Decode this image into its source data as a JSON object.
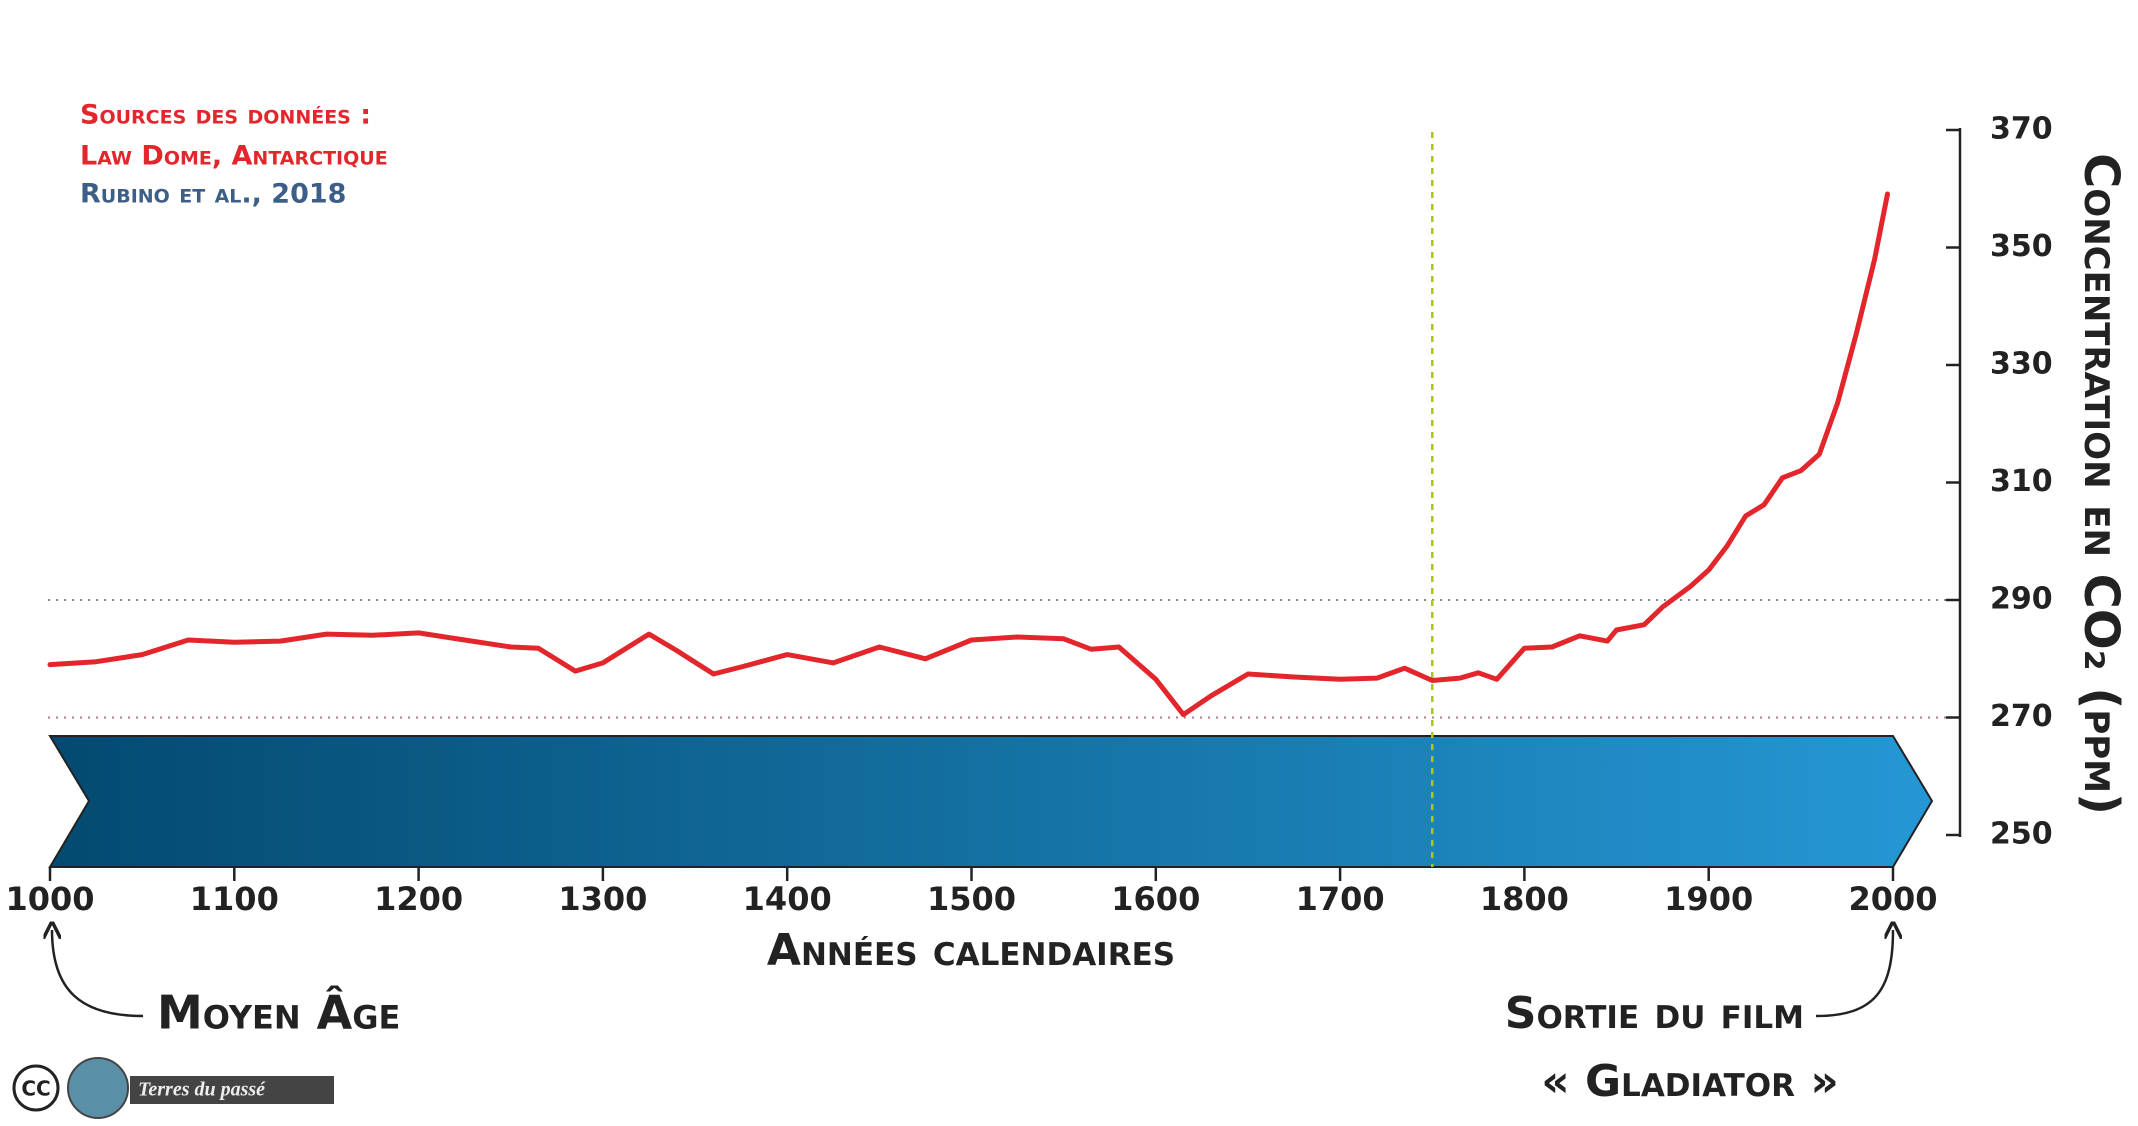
{
  "chart_data": {
    "type": "line",
    "sources": [
      "Sources des données :",
      "Law Dome, Antarctique",
      "Rubino et al., 2018"
    ],
    "xlabel": "Années calendaires",
    "ylabel": "Concentration en CO₂ (ppm)",
    "annotations": [
      "Moyen Âge",
      "Sortie du film",
      "« Gladiator »"
    ],
    "credit": "Terres du passé",
    "license": "CC",
    "xlim": [
      1000,
      2000
    ],
    "xticks": [
      1000,
      1100,
      1200,
      1300,
      1400,
      1500,
      1600,
      1700,
      1800,
      1900,
      2000
    ],
    "ylim": [
      250,
      370
    ],
    "yticks": [
      250,
      270,
      290,
      310,
      330,
      350,
      370
    ],
    "reference_lines": [
      270,
      290
    ],
    "vline": 1750,
    "series": [
      {
        "color": "#e3262b",
        "x": [
          1000,
          1025,
          1050,
          1075,
          1100,
          1125,
          1150,
          1175,
          1200,
          1225,
          1250,
          1265,
          1285,
          1300,
          1325,
          1340,
          1360,
          1375,
          1400,
          1425,
          1450,
          1475,
          1500,
          1525,
          1550,
          1565,
          1580,
          1600,
          1615,
          1630,
          1650,
          1675,
          1700,
          1720,
          1735,
          1750,
          1765,
          1775,
          1785,
          1800,
          1815,
          1830,
          1845,
          1850,
          1865,
          1875,
          1890,
          1900,
          1910,
          1920,
          1930,
          1940,
          1950,
          1960,
          1970,
          1980,
          1990,
          1997
        ],
        "values": [
          279,
          279.5,
          280.7,
          283.2,
          282.8,
          283,
          284.2,
          284,
          284.4,
          283.2,
          282,
          281.8,
          277.9,
          279.3,
          284.2,
          281.4,
          277.4,
          278.6,
          280.7,
          279.3,
          282,
          280,
          283.2,
          283.7,
          283.4,
          281.6,
          282,
          276.5,
          270.5,
          273.7,
          277.4,
          276.9,
          276.5,
          276.7,
          278.4,
          276.3,
          276.7,
          277.6,
          276.5,
          281.8,
          282,
          283.9,
          283,
          284.9,
          285.8,
          288.8,
          292.3,
          295.1,
          299.2,
          304.3,
          306.2,
          310.8,
          312,
          314.8,
          323.6,
          335.2,
          348,
          359.1
        ]
      }
    ]
  }
}
